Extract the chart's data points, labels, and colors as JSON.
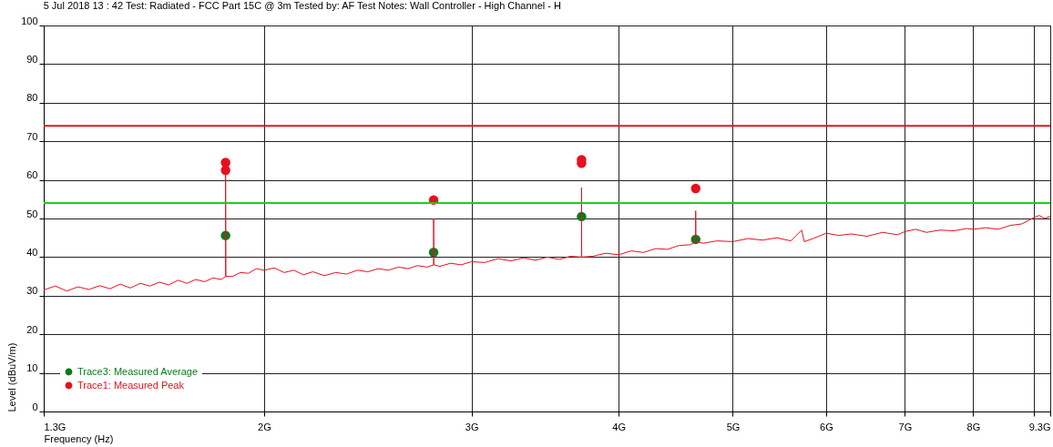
{
  "chart_data": {
    "type": "line",
    "title": "5 Jul 2018   13 : 42  Test: Radiated - FCC Part 15C @ 3m  Tested by: AF  Test Notes: Wall Controller - High Channel - H",
    "xlabel": "Frequency (Hz)",
    "ylabel": "Level (dBuV/m)",
    "log": "x",
    "xlim": [
      1.3,
      9.3
    ],
    "xticks": [
      {
        "value": 1.3,
        "label": "1.3G"
      },
      {
        "value": 2,
        "label": "2G"
      },
      {
        "value": 3,
        "label": "3G"
      },
      {
        "value": 4,
        "label": "4G"
      },
      {
        "value": 5,
        "label": "5G"
      },
      {
        "value": 6,
        "label": "6G"
      },
      {
        "value": 7,
        "label": "7G"
      },
      {
        "value": 8,
        "label": "8G"
      },
      {
        "value": 9,
        "label": null
      },
      {
        "value": 9.3,
        "label": "9.3G"
      }
    ],
    "ylim": [
      0,
      100
    ],
    "yticks": [
      0,
      10,
      20,
      30,
      40,
      50,
      60,
      70,
      80,
      90,
      100
    ],
    "grid": true,
    "legend": "bottom left",
    "ref_lines": [
      {
        "axis": "y",
        "value": 74,
        "color": "#e8101e"
      },
      {
        "axis": "y",
        "value": 54,
        "color": "#22cc22"
      }
    ],
    "series": [
      {
        "name": "Trace3: Measured Average",
        "type": "scatter",
        "marker": "circle",
        "color": "#0a7a1e",
        "x": [
          1.855,
          2.786,
          3.72,
          4.65
        ],
        "values": [
          45.6,
          41.2,
          50.5,
          44.6
        ]
      },
      {
        "name": "Trace1: Measured Peak",
        "color": "#e8101e",
        "x": [
          1.3,
          1.33,
          1.36,
          1.39,
          1.42,
          1.45,
          1.48,
          1.51,
          1.54,
          1.57,
          1.6,
          1.63,
          1.66,
          1.69,
          1.72,
          1.75,
          1.78,
          1.81,
          1.84,
          1.855,
          1.855,
          1.856,
          1.88,
          1.91,
          1.94,
          1.97,
          2.0,
          2.04,
          2.08,
          2.12,
          2.16,
          2.2,
          2.25,
          2.3,
          2.35,
          2.4,
          2.45,
          2.5,
          2.55,
          2.6,
          2.65,
          2.7,
          2.75,
          2.786,
          2.786,
          2.787,
          2.82,
          2.88,
          2.94,
          3.0,
          3.08,
          3.16,
          3.24,
          3.32,
          3.4,
          3.48,
          3.56,
          3.64,
          3.72,
          3.72,
          3.721,
          3.8,
          3.9,
          4.0,
          4.1,
          4.2,
          4.3,
          4.4,
          4.5,
          4.6,
          4.65,
          4.65,
          4.651,
          4.72,
          4.85,
          5.0,
          5.15,
          5.3,
          5.45,
          5.6,
          5.72,
          5.75,
          5.85,
          6.0,
          6.15,
          6.3,
          6.5,
          6.7,
          6.9,
          7.0,
          7.15,
          7.3,
          7.5,
          7.7,
          7.9,
          8.0,
          8.2,
          8.4,
          8.6,
          8.8,
          9.0,
          9.1,
          9.2,
          9.3
        ],
        "values": [
          31.5,
          32.5,
          31.2,
          32.3,
          31.6,
          32.6,
          31.8,
          33.0,
          32.0,
          33.2,
          32.5,
          33.5,
          32.8,
          34.0,
          33.2,
          34.2,
          33.6,
          34.6,
          34.2,
          35,
          62.5,
          35,
          35.0,
          36.0,
          35.8,
          37.0,
          36.6,
          37.2,
          36.0,
          36.6,
          35.4,
          36.2,
          35.2,
          36.0,
          35.6,
          36.6,
          36.2,
          37.0,
          36.6,
          37.4,
          37.0,
          37.8,
          37.4,
          38,
          50,
          38,
          37.6,
          38.4,
          38.0,
          38.8,
          38.6,
          39.6,
          39.0,
          39.8,
          39.2,
          40.0,
          39.4,
          40.2,
          40,
          58,
          40,
          40.2,
          41.0,
          40.6,
          41.6,
          41.2,
          42.2,
          42.0,
          43.0,
          43.2,
          44,
          52,
          44,
          43.6,
          44.2,
          44.0,
          44.8,
          44.4,
          45.0,
          44.2,
          47,
          44.0,
          44.8,
          46.2,
          45.6,
          46.0,
          45.4,
          46.4,
          45.8,
          46.6,
          47.2,
          46.4,
          47.0,
          46.8,
          47.4,
          47.2,
          47.6,
          47.2,
          48.2,
          48.6,
          50.2,
          50.8,
          50.0,
          50.6
        ]
      },
      {
        "type": "scatter",
        "marker": "circle",
        "color": "#e8101e",
        "x": [
          1.855,
          3.72
        ],
        "values": [
          62.5,
          64.3
        ]
      },
      {
        "type": "scatter",
        "marker": "circle",
        "color": "#e8101e",
        "x": [
          1.855,
          2.786,
          3.72,
          4.65
        ],
        "values": [
          64.5,
          54.8,
          65.2,
          57.8
        ]
      }
    ]
  }
}
